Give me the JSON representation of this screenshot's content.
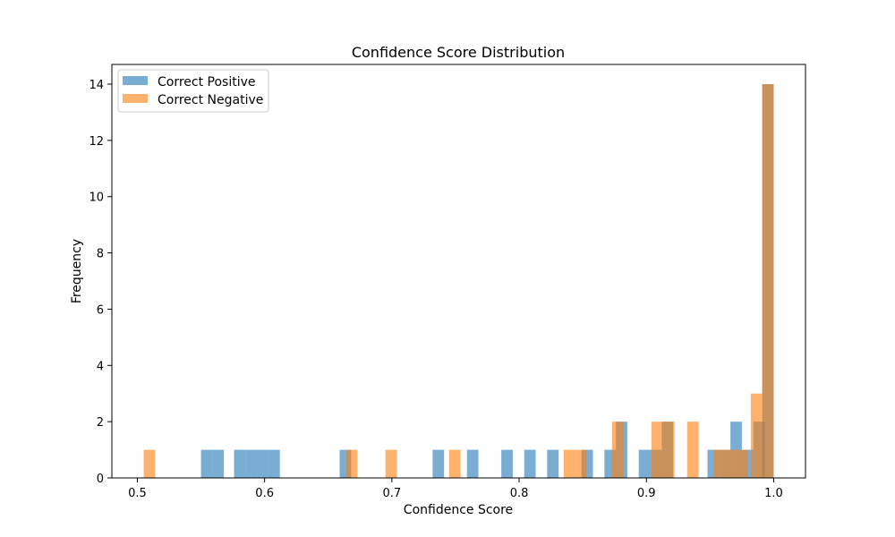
{
  "chart_data": {
    "type": "bar",
    "title": "Confidence Score Distribution",
    "xlabel": "Confidence Score",
    "ylabel": "Frequency",
    "xlim": [
      0.48,
      1.025
    ],
    "ylim": [
      0,
      14.7
    ],
    "xticks": [
      "0.5",
      "0.6",
      "0.7",
      "0.8",
      "0.9",
      "1.0"
    ],
    "yticks": [
      "0",
      "2",
      "4",
      "6",
      "8",
      "10",
      "12",
      "14"
    ],
    "grid": false,
    "legend_position": "upper-left",
    "bin_width": 0.009,
    "series": [
      {
        "name": "Correct Positive",
        "color": "#1f77b4",
        "bins": [
          {
            "x": 0.55,
            "y": 1
          },
          {
            "x": 0.559,
            "y": 1
          },
          {
            "x": 0.576,
            "y": 1
          },
          {
            "x": 0.585,
            "y": 1
          },
          {
            "x": 0.594,
            "y": 1
          },
          {
            "x": 0.603,
            "y": 1
          },
          {
            "x": 0.659,
            "y": 1
          },
          {
            "x": 0.732,
            "y": 1
          },
          {
            "x": 0.759,
            "y": 1
          },
          {
            "x": 0.786,
            "y": 1
          },
          {
            "x": 0.804,
            "y": 1
          },
          {
            "x": 0.822,
            "y": 1
          },
          {
            "x": 0.849,
            "y": 1
          },
          {
            "x": 0.867,
            "y": 1
          },
          {
            "x": 0.876,
            "y": 2
          },
          {
            "x": 0.894,
            "y": 1
          },
          {
            "x": 0.903,
            "y": 1
          },
          {
            "x": 0.912,
            "y": 2
          },
          {
            "x": 0.948,
            "y": 1
          },
          {
            "x": 0.957,
            "y": 1
          },
          {
            "x": 0.966,
            "y": 2
          },
          {
            "x": 0.975,
            "y": 1
          },
          {
            "x": 0.984,
            "y": 2
          },
          {
            "x": 0.991,
            "y": 14
          }
        ]
      },
      {
        "name": "Correct Negative",
        "color": "#ff7f0e",
        "bins": [
          {
            "x": 0.505,
            "y": 1
          },
          {
            "x": 0.664,
            "y": 1
          },
          {
            "x": 0.695,
            "y": 1
          },
          {
            "x": 0.745,
            "y": 1
          },
          {
            "x": 0.835,
            "y": 1
          },
          {
            "x": 0.844,
            "y": 1
          },
          {
            "x": 0.873,
            "y": 2
          },
          {
            "x": 0.904,
            "y": 2
          },
          {
            "x": 0.913,
            "y": 2
          },
          {
            "x": 0.932,
            "y": 2
          },
          {
            "x": 0.953,
            "y": 1
          },
          {
            "x": 0.962,
            "y": 1
          },
          {
            "x": 0.971,
            "y": 1
          },
          {
            "x": 0.982,
            "y": 3
          },
          {
            "x": 0.991,
            "y": 14
          }
        ]
      }
    ]
  }
}
